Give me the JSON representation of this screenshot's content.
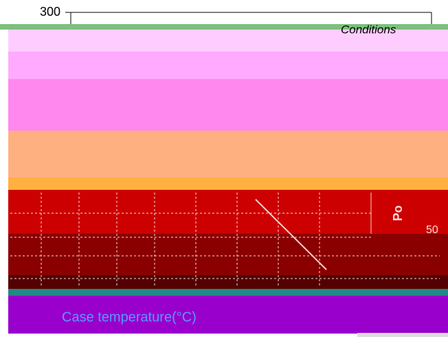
{
  "axis": {
    "top_label": "300",
    "side_label": "Po",
    "right_label": "50",
    "x_title": "Case temperature(°C)"
  },
  "legend": {
    "title": "Conditions"
  }
}
